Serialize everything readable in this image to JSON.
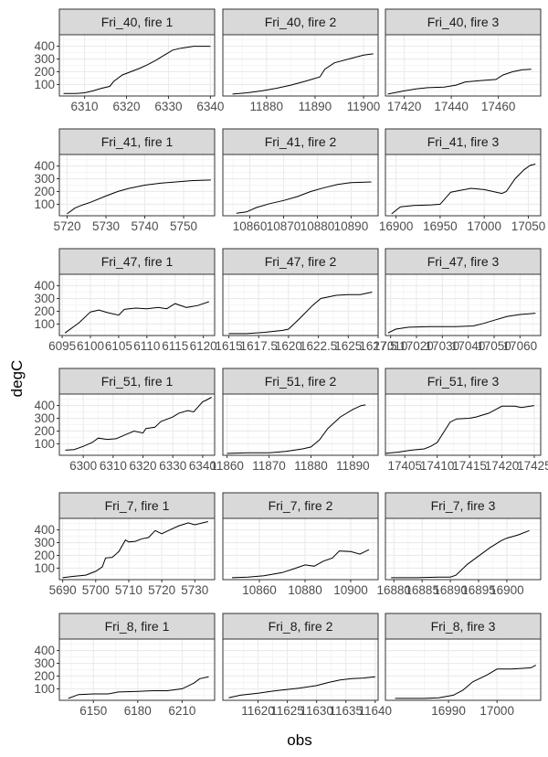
{
  "chart_data": {
    "type": "line",
    "layout": "facet_wrap 6 rows x 3 cols, free x scales, shared y scale",
    "xlabel": "obs",
    "ylabel": "degC",
    "y_ticks": [
      100,
      200,
      300,
      400
    ],
    "ylim": [
      10,
      490
    ],
    "grid": true,
    "legend": "none",
    "colors": {
      "line": "#000000",
      "strip_bg": "#d9d9d9",
      "panel_border": "#333333",
      "grid_major": "#ebebeb",
      "grid_minor": "#f5f5f5",
      "tick_text": "#4d4d4d"
    },
    "panels": [
      {
        "title": "Fri_40, fire 1",
        "xlim": [
          6304,
          6341
        ],
        "x_ticks": [
          6310,
          6320,
          6330,
          6340
        ],
        "x": [
          6305,
          6308,
          6310,
          6312,
          6314,
          6316,
          6317,
          6319,
          6321,
          6323,
          6325,
          6327,
          6329,
          6331,
          6333,
          6336,
          6340
        ],
        "y": [
          30,
          30,
          35,
          50,
          70,
          85,
          125,
          175,
          200,
          225,
          255,
          290,
          330,
          370,
          385,
          400,
          400
        ]
      },
      {
        "title": "Fri_40, fire 2",
        "xlim": [
          11871,
          11903
        ],
        "x_ticks": [
          11880,
          11890,
          11900
        ],
        "x": [
          11873,
          11876,
          11879,
          11882,
          11885,
          11888,
          11891,
          11892,
          11894,
          11897,
          11900,
          11902
        ],
        "y": [
          25,
          35,
          50,
          70,
          95,
          125,
          160,
          220,
          270,
          300,
          330,
          340
        ]
      },
      {
        "title": "Fri_40, fire 3",
        "xlim": [
          17412,
          17478
        ],
        "x_ticks": [
          17420,
          17440,
          17460
        ],
        "x": [
          17413,
          17420,
          17425,
          17430,
          17437,
          17442,
          17446,
          17452,
          17459,
          17462,
          17466,
          17470,
          17474
        ],
        "y": [
          25,
          50,
          65,
          75,
          80,
          95,
          120,
          130,
          140,
          175,
          200,
          215,
          220
        ]
      },
      {
        "title": "Fri_41, fire 1",
        "xlim": [
          5718,
          5758
        ],
        "x_ticks": [
          5720,
          5730,
          5740,
          5750
        ],
        "x": [
          5720,
          5722,
          5724,
          5726,
          5730,
          5733,
          5736,
          5740,
          5744,
          5748,
          5752,
          5757
        ],
        "y": [
          25,
          70,
          95,
          115,
          165,
          200,
          225,
          250,
          265,
          275,
          285,
          290
        ]
      },
      {
        "title": "Fri_41, fire 2",
        "xlim": [
          10852,
          10898
        ],
        "x_ticks": [
          10860,
          10870,
          10880,
          10890
        ],
        "x": [
          10856,
          10859,
          10862,
          10866,
          10870,
          10874,
          10878,
          10882,
          10886,
          10890,
          10896
        ],
        "y": [
          30,
          40,
          75,
          105,
          130,
          160,
          200,
          230,
          255,
          270,
          275
        ]
      },
      {
        "title": "Fri_41, fire 3",
        "xlim": [
          16888,
          17064
        ],
        "x_ticks": [
          16900,
          16950,
          17000,
          17050
        ],
        "x": [
          16895,
          16905,
          16920,
          16940,
          16950,
          16962,
          16985,
          17000,
          17020,
          17025,
          17035,
          17045,
          17052,
          17058
        ],
        "y": [
          25,
          80,
          90,
          95,
          100,
          195,
          225,
          215,
          185,
          200,
          300,
          370,
          405,
          415
        ]
      },
      {
        "title": "Fri_47, fire 1",
        "xlim": [
          6094.5,
          6122
        ],
        "x_ticks": [
          6095,
          6100,
          6105,
          6110,
          6115,
          6120
        ],
        "x": [
          6095.5,
          6098,
          6100,
          6101.5,
          6103,
          6105,
          6106,
          6108,
          6110,
          6112,
          6113.5,
          6115,
          6117,
          6119,
          6121
        ],
        "y": [
          30,
          110,
          195,
          210,
          190,
          170,
          215,
          225,
          220,
          230,
          220,
          260,
          230,
          245,
          275
        ]
      },
      {
        "title": "Fri_47, fire 2",
        "xlim": [
          1614.5,
          1627.5
        ],
        "x_ticks": [
          1615,
          1617.5,
          1620,
          1622.5,
          1625,
          1627.5
        ],
        "x": [
          1615,
          1616.5,
          1618,
          1619.5,
          1620,
          1621,
          1622,
          1622.7,
          1624,
          1625,
          1626,
          1627
        ],
        "y": [
          25,
          25,
          35,
          50,
          60,
          150,
          245,
          300,
          325,
          330,
          330,
          350
        ]
      },
      {
        "title": "Fri_47, fire 3",
        "xlim": [
          17008,
          17068
        ],
        "x_ticks": [
          17010,
          17020,
          17030,
          17040,
          17050,
          17060
        ],
        "x": [
          17009,
          17012,
          17017,
          17025,
          17035,
          17042,
          17046,
          17050,
          17055,
          17060,
          17066
        ],
        "y": [
          30,
          60,
          75,
          80,
          80,
          85,
          105,
          130,
          160,
          175,
          185
        ]
      },
      {
        "title": "Fri_51, fire 1",
        "xlim": [
          6292,
          6344
        ],
        "x_ticks": [
          6300,
          6310,
          6320,
          6330,
          6340
        ],
        "x": [
          6294,
          6297,
          6300,
          6303,
          6305,
          6308,
          6311,
          6314,
          6317,
          6320,
          6321,
          6324,
          6326,
          6330,
          6332,
          6335,
          6337,
          6340,
          6341,
          6343
        ],
        "y": [
          50,
          55,
          80,
          110,
          145,
          135,
          140,
          170,
          200,
          185,
          220,
          230,
          275,
          310,
          340,
          360,
          350,
          430,
          440,
          465
        ]
      },
      {
        "title": "Fri_51, fire 2",
        "xlim": [
          11859,
          11896
        ],
        "x_ticks": [
          11860,
          11870,
          11880,
          11890
        ],
        "x": [
          11860,
          11865,
          11870,
          11874,
          11878,
          11880,
          11882,
          11884,
          11887,
          11890,
          11892,
          11893
        ],
        "y": [
          25,
          30,
          30,
          40,
          60,
          75,
          130,
          220,
          310,
          370,
          400,
          405
        ]
      },
      {
        "title": "Fri_51, fire 3",
        "xlim": [
          17402,
          17426
        ],
        "x_ticks": [
          17405,
          17410,
          17415,
          17420,
          17425
        ],
        "x": [
          17402,
          17404,
          17406,
          17408,
          17409,
          17410,
          17412,
          17413,
          17415,
          17416,
          17418,
          17420,
          17422,
          17423,
          17425
        ],
        "y": [
          25,
          35,
          50,
          60,
          80,
          110,
          270,
          295,
          300,
          310,
          340,
          395,
          395,
          385,
          400
        ]
      },
      {
        "title": "Fri_7, fire 1",
        "xlim": [
          5689,
          5736
        ],
        "x_ticks": [
          5690,
          5700,
          5710,
          5720,
          5730
        ],
        "x": [
          5690,
          5693,
          5697,
          5700,
          5702,
          5703,
          5705,
          5707,
          5709,
          5710,
          5712,
          5714,
          5716,
          5718,
          5720,
          5722,
          5725,
          5728,
          5730,
          5734
        ],
        "y": [
          25,
          35,
          45,
          75,
          110,
          180,
          185,
          230,
          320,
          305,
          310,
          330,
          340,
          395,
          370,
          395,
          430,
          455,
          440,
          465
        ]
      },
      {
        "title": "Fri_7, fire 2",
        "xlim": [
          10844,
          10912
        ],
        "x_ticks": [
          10860,
          10880,
          10900
        ],
        "x": [
          10848,
          10855,
          10862,
          10870,
          10876,
          10880,
          10884,
          10888,
          10892,
          10895,
          10900,
          10904,
          10908
        ],
        "y": [
          25,
          30,
          40,
          65,
          100,
          125,
          115,
          155,
          180,
          235,
          230,
          210,
          245
        ]
      },
      {
        "title": "Fri_7, fire 3",
        "xlim": [
          16878.5,
          16906
        ],
        "x_ticks": [
          16880,
          16885,
          16890,
          16895,
          16900
        ],
        "x": [
          16879.5,
          16884,
          16888,
          16890,
          16891,
          16893,
          16895,
          16897,
          16899,
          16900,
          16902,
          16904
        ],
        "y": [
          25,
          25,
          30,
          30,
          45,
          130,
          195,
          260,
          315,
          335,
          360,
          395
        ]
      },
      {
        "title": "Fri_8, fire 1",
        "xlim": [
          6127,
          6232
        ],
        "x_ticks": [
          6150,
          6180,
          6210
        ],
        "x": [
          6133,
          6140,
          6150,
          6160,
          6167,
          6180,
          6190,
          6200,
          6210,
          6218,
          6222,
          6228
        ],
        "y": [
          25,
          55,
          60,
          60,
          75,
          80,
          85,
          85,
          100,
          145,
          180,
          195
        ]
      },
      {
        "title": "Fri_8, fire 2",
        "xlim": [
          11614,
          11640.5
        ],
        "x_ticks": [
          11620,
          11625,
          11630,
          11635,
          11640
        ],
        "x": [
          11615,
          11617,
          11620,
          11623,
          11627,
          11630,
          11632,
          11634,
          11636,
          11638,
          11640
        ],
        "y": [
          30,
          50,
          65,
          85,
          105,
          125,
          150,
          170,
          180,
          185,
          195
        ]
      },
      {
        "title": "Fri_8, fire 3",
        "xlim": [
          16977,
          17009
        ],
        "x_ticks": [
          16990,
          17000
        ],
        "x": [
          16979,
          16985,
          16988,
          16991,
          16993,
          16995,
          16998,
          17000,
          17003,
          17005,
          17007,
          17008
        ],
        "y": [
          25,
          25,
          30,
          50,
          90,
          155,
          210,
          255,
          255,
          260,
          265,
          285
        ]
      }
    ]
  }
}
